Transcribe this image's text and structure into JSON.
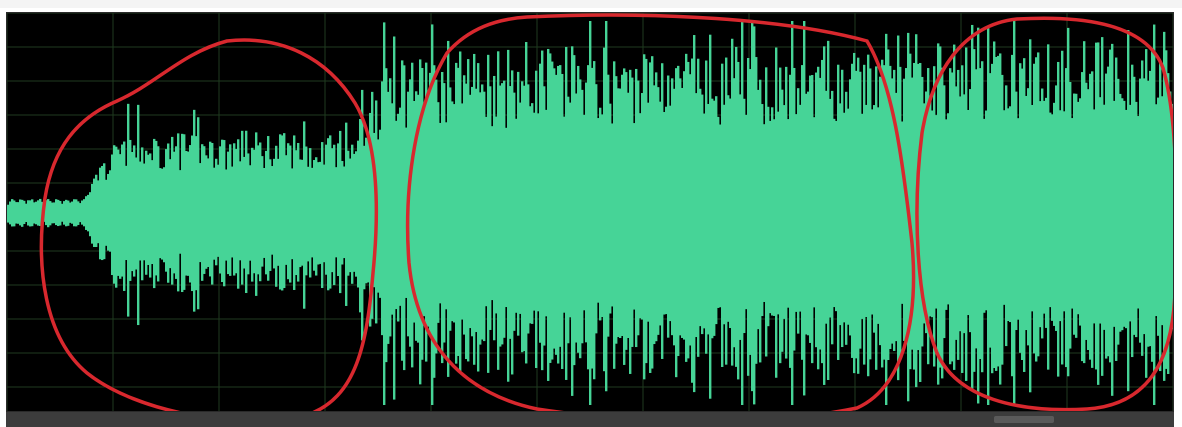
{
  "colors": {
    "background": "#000000",
    "grid": "#1f3a1f",
    "grid_midline": "#2e5a2e",
    "waveform": "#46d497",
    "annotation": "#d8282e",
    "frame_bottom": "#3c3c3c"
  },
  "waveform": {
    "channel": "mono",
    "segments": [
      {
        "name": "intro-low",
        "start": 0.0,
        "end": 0.08,
        "level": 0.06
      },
      {
        "name": "section-1",
        "start": 0.08,
        "end": 0.31,
        "level": 0.42
      },
      {
        "name": "section-2",
        "start": 0.31,
        "end": 0.78,
        "level": 0.88
      },
      {
        "name": "section-3",
        "start": 0.78,
        "end": 1.0,
        "level": 0.92
      }
    ]
  },
  "annotations": [
    {
      "name": "loop-section-1",
      "covers": "section-1"
    },
    {
      "name": "loop-section-2",
      "covers": "section-2"
    },
    {
      "name": "loop-section-3",
      "covers": "section-3"
    }
  ],
  "grid": {
    "show": true
  }
}
